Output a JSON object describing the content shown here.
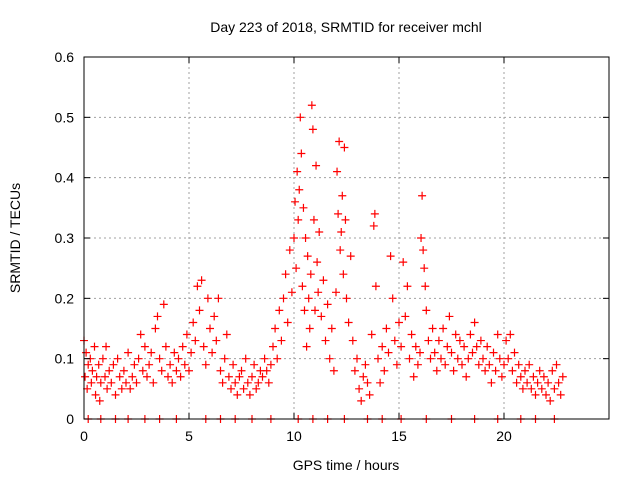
{
  "chart_data": {
    "type": "scatter",
    "title": "Day 223 of 2018, SRMTID for receiver mchl",
    "xlabel": "GPS time / hours",
    "ylabel": "SRMTID / TECUs",
    "xlim": [
      0,
      25
    ],
    "ylim": [
      0,
      0.6
    ],
    "xticks": [
      0,
      5,
      10,
      15,
      20
    ],
    "xtick_labels": [
      "0",
      "5",
      "10",
      "15",
      "20"
    ],
    "yticks": [
      0,
      0.1,
      0.2,
      0.3,
      0.4,
      0.5,
      0.6
    ],
    "ytick_labels": [
      "0",
      "0.1",
      "0.2",
      "0.3",
      "0.4",
      "0.5",
      "0.6"
    ],
    "grid": true,
    "marker": "+",
    "color": "#ff0000",
    "series": [
      {
        "name": "SRMTID",
        "points": [
          [
            0.0,
            0.13
          ],
          [
            0.05,
            0.07
          ],
          [
            0.1,
            0.11
          ],
          [
            0.15,
            0.05
          ],
          [
            0.2,
            0.09
          ],
          [
            0.3,
            0.1
          ],
          [
            0.35,
            0.06
          ],
          [
            0.4,
            0.08
          ],
          [
            0.5,
            0.12
          ],
          [
            0.55,
            0.04
          ],
          [
            0.6,
            0.07
          ],
          [
            0.7,
            0.09
          ],
          [
            0.75,
            0.03
          ],
          [
            0.8,
            0.06
          ],
          [
            0.9,
            0.1
          ],
          [
            1.0,
            0.07
          ],
          [
            1.05,
            0.12
          ],
          [
            1.1,
            0.05
          ],
          [
            1.2,
            0.08
          ],
          [
            1.3,
            0.06
          ],
          [
            1.4,
            0.09
          ],
          [
            1.5,
            0.04
          ],
          [
            1.6,
            0.1
          ],
          [
            1.7,
            0.07
          ],
          [
            1.8,
            0.05
          ],
          [
            1.9,
            0.08
          ],
          [
            2.0,
            0.06
          ],
          [
            2.1,
            0.11
          ],
          [
            2.2,
            0.05
          ],
          [
            2.3,
            0.07
          ],
          [
            2.4,
            0.09
          ],
          [
            2.5,
            0.06
          ],
          [
            2.6,
            0.1
          ],
          [
            2.7,
            0.14
          ],
          [
            2.8,
            0.08
          ],
          [
            2.9,
            0.12
          ],
          [
            3.0,
            0.07
          ],
          [
            3.1,
            0.09
          ],
          [
            3.2,
            0.11
          ],
          [
            3.3,
            0.06
          ],
          [
            3.4,
            0.15
          ],
          [
            3.5,
            0.17
          ],
          [
            3.6,
            0.1
          ],
          [
            3.7,
            0.08
          ],
          [
            3.8,
            0.19
          ],
          [
            3.9,
            0.12
          ],
          [
            4.0,
            0.07
          ],
          [
            4.1,
            0.09
          ],
          [
            4.2,
            0.06
          ],
          [
            4.3,
            0.11
          ],
          [
            4.4,
            0.08
          ],
          [
            4.5,
            0.1
          ],
          [
            4.6,
            0.07
          ],
          [
            4.7,
            0.12
          ],
          [
            4.8,
            0.09
          ],
          [
            4.9,
            0.14
          ],
          [
            5.0,
            0.08
          ],
          [
            5.1,
            0.11
          ],
          [
            5.2,
            0.16
          ],
          [
            5.3,
            0.13
          ],
          [
            5.4,
            0.22
          ],
          [
            5.5,
            0.18
          ],
          [
            5.6,
            0.23
          ],
          [
            5.7,
            0.12
          ],
          [
            5.8,
            0.09
          ],
          [
            5.9,
            0.2
          ],
          [
            6.0,
            0.15
          ],
          [
            6.1,
            0.11
          ],
          [
            6.2,
            0.17
          ],
          [
            6.3,
            0.13
          ],
          [
            6.4,
            0.2
          ],
          [
            6.5,
            0.08
          ],
          [
            6.6,
            0.06
          ],
          [
            6.7,
            0.1
          ],
          [
            6.8,
            0.14
          ],
          [
            6.9,
            0.07
          ],
          [
            7.0,
            0.05
          ],
          [
            7.1,
            0.09
          ],
          [
            7.2,
            0.06
          ],
          [
            7.3,
            0.04
          ],
          [
            7.4,
            0.07
          ],
          [
            7.5,
            0.08
          ],
          [
            7.6,
            0.05
          ],
          [
            7.7,
            0.1
          ],
          [
            7.8,
            0.06
          ],
          [
            7.9,
            0.04
          ],
          [
            8.0,
            0.07
          ],
          [
            8.1,
            0.09
          ],
          [
            8.2,
            0.05
          ],
          [
            8.3,
            0.06
          ],
          [
            8.4,
            0.08
          ],
          [
            8.5,
            0.07
          ],
          [
            8.6,
            0.1
          ],
          [
            8.7,
            0.08
          ],
          [
            8.8,
            0.06
          ],
          [
            8.9,
            0.09
          ],
          [
            9.0,
            0.12
          ],
          [
            9.1,
            0.15
          ],
          [
            9.2,
            0.1
          ],
          [
            9.3,
            0.18
          ],
          [
            9.4,
            0.13
          ],
          [
            9.5,
            0.2
          ],
          [
            9.6,
            0.24
          ],
          [
            9.7,
            0.16
          ],
          [
            9.8,
            0.28
          ],
          [
            9.9,
            0.21
          ],
          [
            10.0,
            0.3
          ],
          [
            10.05,
            0.36
          ],
          [
            10.1,
            0.25
          ],
          [
            10.15,
            0.41
          ],
          [
            10.2,
            0.33
          ],
          [
            10.25,
            0.38
          ],
          [
            10.3,
            0.5
          ],
          [
            10.35,
            0.44
          ],
          [
            10.4,
            0.22
          ],
          [
            10.45,
            0.35
          ],
          [
            10.5,
            0.18
          ],
          [
            10.55,
            0.3
          ],
          [
            10.6,
            0.12
          ],
          [
            10.65,
            0.27
          ],
          [
            10.7,
            0.2
          ],
          [
            10.75,
            0.15
          ],
          [
            10.8,
            0.24
          ],
          [
            10.85,
            0.52
          ],
          [
            10.9,
            0.48
          ],
          [
            10.95,
            0.33
          ],
          [
            11.0,
            0.18
          ],
          [
            11.05,
            0.42
          ],
          [
            11.1,
            0.26
          ],
          [
            11.15,
            0.21
          ],
          [
            11.2,
            0.31
          ],
          [
            11.3,
            0.17
          ],
          [
            11.4,
            0.23
          ],
          [
            11.5,
            0.13
          ],
          [
            11.6,
            0.19
          ],
          [
            11.7,
            0.1
          ],
          [
            11.8,
            0.15
          ],
          [
            11.9,
            0.08
          ],
          [
            12.0,
            0.21
          ],
          [
            12.05,
            0.41
          ],
          [
            12.1,
            0.34
          ],
          [
            12.15,
            0.46
          ],
          [
            12.2,
            0.28
          ],
          [
            12.25,
            0.31
          ],
          [
            12.3,
            0.37
          ],
          [
            12.35,
            0.24
          ],
          [
            12.4,
            0.45
          ],
          [
            12.45,
            0.33
          ],
          [
            12.5,
            0.2
          ],
          [
            12.6,
            0.16
          ],
          [
            12.7,
            0.27
          ],
          [
            12.8,
            0.13
          ],
          [
            12.9,
            0.08
          ],
          [
            13.0,
            0.1
          ],
          [
            13.1,
            0.05
          ],
          [
            13.2,
            0.03
          ],
          [
            13.3,
            0.07
          ],
          [
            13.4,
            0.09
          ],
          [
            13.5,
            0.06
          ],
          [
            13.6,
            0.04
          ],
          [
            13.7,
            0.14
          ],
          [
            13.8,
            0.32
          ],
          [
            13.85,
            0.34
          ],
          [
            13.9,
            0.22
          ],
          [
            14.0,
            0.1
          ],
          [
            14.1,
            0.06
          ],
          [
            14.2,
            0.12
          ],
          [
            14.3,
            0.08
          ],
          [
            14.4,
            0.15
          ],
          [
            14.5,
            0.11
          ],
          [
            14.6,
            0.27
          ],
          [
            14.7,
            0.2
          ],
          [
            14.8,
            0.13
          ],
          [
            14.9,
            0.09
          ],
          [
            15.0,
            0.16
          ],
          [
            15.1,
            0.12
          ],
          [
            15.2,
            0.26
          ],
          [
            15.3,
            0.17
          ],
          [
            15.4,
            0.22
          ],
          [
            15.5,
            0.1
          ],
          [
            15.6,
            0.14
          ],
          [
            15.7,
            0.07
          ],
          [
            15.8,
            0.12
          ],
          [
            15.9,
            0.09
          ],
          [
            16.0,
            0.11
          ],
          [
            16.05,
            0.3
          ],
          [
            16.1,
            0.37
          ],
          [
            16.15,
            0.28
          ],
          [
            16.2,
            0.25
          ],
          [
            16.25,
            0.22
          ],
          [
            16.3,
            0.18
          ],
          [
            16.4,
            0.13
          ],
          [
            16.5,
            0.1
          ],
          [
            16.6,
            0.15
          ],
          [
            16.7,
            0.11
          ],
          [
            16.8,
            0.08
          ],
          [
            16.9,
            0.13
          ],
          [
            17.0,
            0.1
          ],
          [
            17.1,
            0.15
          ],
          [
            17.2,
            0.09
          ],
          [
            17.3,
            0.12
          ],
          [
            17.4,
            0.17
          ],
          [
            17.5,
            0.11
          ],
          [
            17.6,
            0.08
          ],
          [
            17.7,
            0.14
          ],
          [
            17.8,
            0.1
          ],
          [
            17.9,
            0.13
          ],
          [
            18.0,
            0.09
          ],
          [
            18.1,
            0.12
          ],
          [
            18.2,
            0.07
          ],
          [
            18.3,
            0.1
          ],
          [
            18.4,
            0.14
          ],
          [
            18.5,
            0.11
          ],
          [
            18.6,
            0.16
          ],
          [
            18.7,
            0.12
          ],
          [
            18.8,
            0.09
          ],
          [
            18.9,
            0.13
          ],
          [
            19.0,
            0.1
          ],
          [
            19.1,
            0.08
          ],
          [
            19.2,
            0.12
          ],
          [
            19.3,
            0.09
          ],
          [
            19.4,
            0.06
          ],
          [
            19.5,
            0.11
          ],
          [
            19.6,
            0.08
          ],
          [
            19.7,
            0.14
          ],
          [
            19.8,
            0.1
          ],
          [
            19.9,
            0.07
          ],
          [
            20.0,
            0.09
          ],
          [
            20.1,
            0.13
          ],
          [
            20.2,
            0.1
          ],
          [
            20.3,
            0.14
          ],
          [
            20.4,
            0.08
          ],
          [
            20.5,
            0.11
          ],
          [
            20.6,
            0.06
          ],
          [
            20.7,
            0.09
          ],
          [
            20.8,
            0.07
          ],
          [
            20.9,
            0.05
          ],
          [
            21.0,
            0.08
          ],
          [
            21.1,
            0.06
          ],
          [
            21.2,
            0.09
          ],
          [
            21.3,
            0.05
          ],
          [
            21.4,
            0.07
          ],
          [
            21.5,
            0.04
          ],
          [
            21.6,
            0.06
          ],
          [
            21.7,
            0.08
          ],
          [
            21.8,
            0.05
          ],
          [
            21.9,
            0.07
          ],
          [
            22.0,
            0.04
          ],
          [
            22.1,
            0.06
          ],
          [
            22.2,
            0.03
          ],
          [
            22.3,
            0.08
          ],
          [
            22.4,
            0.05
          ],
          [
            22.5,
            0.09
          ],
          [
            22.6,
            0.06
          ],
          [
            22.7,
            0.04
          ],
          [
            22.8,
            0.07
          ],
          [
            0.2,
            0.0
          ],
          [
            0.8,
            0.0
          ],
          [
            1.5,
            0.0
          ],
          [
            2.1,
            0.0
          ],
          [
            2.9,
            0.0
          ],
          [
            3.6,
            0.0
          ],
          [
            4.4,
            0.0
          ],
          [
            5.8,
            0.0
          ],
          [
            6.5,
            0.0
          ],
          [
            7.2,
            0.0
          ],
          [
            8.0,
            0.0
          ],
          [
            8.9,
            0.0
          ],
          [
            10.2,
            0.0
          ],
          [
            10.9,
            0.0
          ],
          [
            11.6,
            0.0
          ],
          [
            12.4,
            0.0
          ],
          [
            13.5,
            0.0
          ],
          [
            14.2,
            0.0
          ],
          [
            15.1,
            0.0
          ],
          [
            16.3,
            0.0
          ],
          [
            17.5,
            0.0
          ],
          [
            18.6,
            0.0
          ],
          [
            19.7,
            0.0
          ],
          [
            20.8,
            0.0
          ],
          [
            21.5,
            0.0
          ],
          [
            22.4,
            0.0
          ]
        ]
      }
    ]
  }
}
